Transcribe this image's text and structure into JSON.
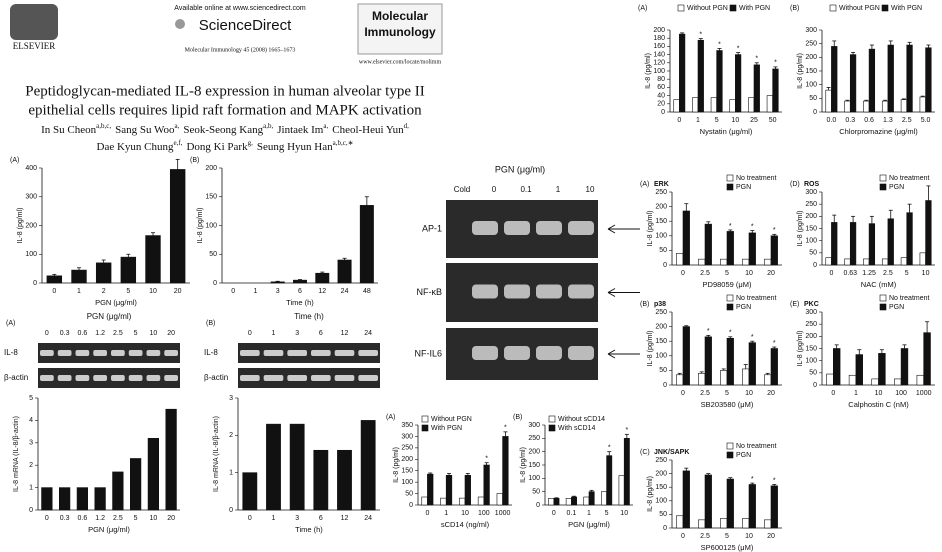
{
  "header": {
    "available": "Available online at www.sciencedirect.com",
    "brand": "ScienceDirect",
    "publisher": "ELSEVIER",
    "citation": "Molecular Immunology 45 (2008) 1665–1673",
    "journal": [
      "Molecular",
      "Immunology"
    ],
    "url": "www.elsevier.com/locate/molimm",
    "title": [
      "Peptidoglycan-mediated IL-8 expression in human alveolar type II",
      "epithelial cells requires lipid raft formation and MAPK activation"
    ],
    "authors": [
      [
        {
          "name": "In Su Cheon",
          "sup": "a,b,c,"
        },
        {
          "name": "Sang Su Woo",
          "sup": "a,"
        },
        {
          "name": "Seok-Seong Kang",
          "sup": "a,b,"
        },
        {
          "name": "Jintaek Im",
          "sup": "a,"
        },
        {
          "name": "Cheol-Heui Yun",
          "sup": "d,"
        }
      ],
      [
        {
          "name": "Dae Kyun Chung",
          "sup": "e,f,"
        },
        {
          "name": "Dong Ki Park",
          "sup": "g,"
        },
        {
          "name": "Seung Hyun Han",
          "sup": "a,b,c,∗"
        }
      ]
    ]
  },
  "emsa": {
    "header": "PGN (μg/ml)",
    "lanes": [
      "Cold",
      "0",
      "0.1",
      "1",
      "10"
    ],
    "rows": [
      "AP-1",
      "NF-κB",
      "NF-IL6"
    ]
  },
  "chart_data": [
    {
      "type": "bar",
      "panel": "(A)",
      "ylabel": "IL-8 (pg/ml)",
      "xlabel": "PGN (μg/ml)",
      "categories": [
        "0",
        "1",
        "2",
        "5",
        "10",
        "20"
      ],
      "values": [
        25,
        45,
        70,
        90,
        165,
        395
      ],
      "errors": [
        5,
        8,
        10,
        10,
        10,
        35
      ],
      "color": "#111111",
      "ylim": [
        0,
        400
      ],
      "yticks": [
        0,
        100,
        200,
        300,
        400
      ]
    },
    {
      "type": "bar",
      "panel": "(B)",
      "ylabel": "IL-8 (pg/ml)",
      "xlabel": "Time (h)",
      "categories": [
        "0",
        "1",
        "3",
        "6",
        "12",
        "24",
        "48"
      ],
      "values": [
        0,
        0,
        2,
        5,
        17,
        40,
        135
      ],
      "errors": [
        0,
        0,
        1,
        1,
        2,
        3,
        15
      ],
      "color": "#111111",
      "ylim": [
        0,
        200
      ],
      "yticks": [
        0,
        50,
        100,
        150,
        200
      ]
    },
    {
      "type": "bar",
      "panel": "(A)",
      "gel": {
        "header": "PGN (μg/ml)",
        "lanes": [
          "0",
          "0.3",
          "0.6",
          "1.2",
          "2.5",
          "5",
          "10",
          "20"
        ],
        "rows": [
          "IL-8",
          "β-actin"
        ]
      },
      "ylabel": "IL-8 mRNA (IL-8/β-actin)",
      "xlabel": "PGN (μg/ml)",
      "categories": [
        "0",
        "0.3",
        "0.6",
        "1.2",
        "2.5",
        "5",
        "10",
        "20"
      ],
      "values": [
        1,
        1,
        1,
        1,
        1.7,
        2.3,
        3.2,
        4.5
      ],
      "color": "#111111",
      "ylim": [
        0,
        5
      ],
      "yticks": [
        0,
        1,
        2,
        3,
        4,
        5
      ]
    },
    {
      "type": "bar",
      "panel": "(B)",
      "gel": {
        "header": "Time (h)",
        "lanes": [
          "0",
          "1",
          "3",
          "6",
          "12",
          "24"
        ],
        "rows": [
          "IL-8",
          "β-actin"
        ]
      },
      "ylabel": "IL-8 mRNA (IL-8/β-actin)",
      "xlabel": "Time (h)",
      "categories": [
        "0",
        "1",
        "3",
        "6",
        "12",
        "24"
      ],
      "values": [
        1,
        2.3,
        2.3,
        1.6,
        1.6,
        2.4
      ],
      "color": "#111111",
      "ylim": [
        0,
        3
      ],
      "yticks": [
        0,
        1,
        2,
        3
      ]
    },
    {
      "type": "bar",
      "panel": "(A)",
      "ylabel": "IL-8 (pg/ml)",
      "xlabel": "sCD14 (ng/ml)",
      "legend": "upper left",
      "categories": [
        "0",
        "1",
        "10",
        "100",
        "1000"
      ],
      "series": [
        {
          "name": "Without PGN",
          "color": "#ffffff",
          "values": [
            35,
            30,
            30,
            35,
            50
          ]
        },
        {
          "name": "With PGN",
          "color": "#111111",
          "values": [
            135,
            130,
            130,
            175,
            300
          ],
          "errors": [
            5,
            8,
            8,
            10,
            20
          ],
          "annotations": [
            null,
            null,
            null,
            "*",
            "*"
          ]
        }
      ],
      "ylim": [
        0,
        350
      ],
      "yticks": [
        0,
        50,
        100,
        150,
        200,
        250,
        300,
        350
      ]
    },
    {
      "type": "bar",
      "panel": "(B)",
      "ylabel": "IL-8 (pg/ml)",
      "xlabel": "PGN (μg/ml)",
      "legend": "upper left",
      "categories": [
        "0",
        "0.1",
        "1",
        "5",
        "10"
      ],
      "series": [
        {
          "name": "Without sCD14",
          "color": "#ffffff",
          "values": [
            25,
            25,
            30,
            50,
            110
          ]
        },
        {
          "name": "With sCD14",
          "color": "#111111",
          "values": [
            25,
            30,
            50,
            185,
            250
          ],
          "errors": [
            2,
            3,
            5,
            15,
            15
          ],
          "annotations": [
            null,
            null,
            null,
            "*",
            "*"
          ]
        }
      ],
      "ylim": [
        0,
        300
      ],
      "yticks": [
        0,
        50,
        100,
        150,
        200,
        250,
        300
      ]
    },
    {
      "type": "bar",
      "panel": "(A)",
      "ylabel": "IL-8 (pg/ml)",
      "xlabel": "Nystatin (μg/ml)",
      "legend": "above",
      "categories": [
        "0",
        "1",
        "5",
        "10",
        "25",
        "50"
      ],
      "series": [
        {
          "name": "Without PGN",
          "color": "#ffffff",
          "values": [
            30,
            35,
            35,
            30,
            35,
            40
          ]
        },
        {
          "name": "With PGN",
          "color": "#111111",
          "values": [
            190,
            175,
            150,
            140,
            115,
            105
          ],
          "errors": [
            3,
            4,
            5,
            5,
            5,
            5
          ],
          "annotations": [
            null,
            "*",
            "*",
            "*",
            "*",
            "*"
          ]
        }
      ],
      "ylim": [
        0,
        200
      ],
      "yticks": [
        0,
        20,
        40,
        60,
        80,
        100,
        120,
        140,
        160,
        180,
        200
      ]
    },
    {
      "type": "bar",
      "panel": "(B)",
      "ylabel": "IL-8 (pg/ml)",
      "xlabel": "Chlorpromazine (μg/ml)",
      "legend": "above",
      "categories": [
        "0.0",
        "0.3",
        "0.6",
        "1.3",
        "2.5",
        "5.0"
      ],
      "series": [
        {
          "name": "Without PGN",
          "color": "#ffffff",
          "values": [
            80,
            40,
            40,
            40,
            45,
            55
          ],
          "errors": [
            10,
            3,
            3,
            3,
            3,
            3
          ]
        },
        {
          "name": "With PGN",
          "color": "#111111",
          "values": [
            240,
            210,
            230,
            245,
            245,
            235
          ],
          "errors": [
            20,
            8,
            15,
            15,
            10,
            10
          ]
        }
      ],
      "ylim": [
        0,
        300
      ],
      "yticks": [
        0,
        50,
        100,
        150,
        200,
        250,
        300
      ]
    },
    {
      "type": "bar",
      "panel": "(A)",
      "title": "ERK",
      "ylabel": "IL-8 (pg/ml)",
      "xlabel": "PD98059 (μM)",
      "legend": "upper right",
      "categories": [
        "0",
        "2.5",
        "5",
        "10",
        "20"
      ],
      "series": [
        {
          "name": "No treatment",
          "color": "#ffffff",
          "values": [
            40,
            20,
            20,
            20,
            20
          ]
        },
        {
          "name": "PGN",
          "color": "#111111",
          "values": [
            185,
            140,
            115,
            110,
            100
          ],
          "errors": [
            25,
            8,
            5,
            8,
            5
          ],
          "annotations": [
            null,
            null,
            "*",
            "*",
            "*"
          ]
        }
      ],
      "ylim": [
        0,
        250
      ],
      "yticks": [
        0,
        50,
        100,
        150,
        200,
        250
      ]
    },
    {
      "type": "bar",
      "panel": "(D)",
      "title": "ROS",
      "ylabel": "IL-8 (pg/ml)",
      "xlabel": "NAC (mM)",
      "legend": "upper right",
      "categories": [
        "0",
        "0.63",
        "1.25",
        "2.5",
        "5",
        "10"
      ],
      "series": [
        {
          "name": "No treatment",
          "color": "#ffffff",
          "values": [
            30,
            25,
            25,
            25,
            30,
            50
          ]
        },
        {
          "name": "PGN",
          "color": "#111111",
          "values": [
            175,
            175,
            170,
            190,
            215,
            265
          ],
          "errors": [
            30,
            25,
            30,
            35,
            35,
            60
          ]
        }
      ],
      "ylim": [
        0,
        300
      ],
      "yticks": [
        0,
        50,
        100,
        150,
        200,
        250,
        300
      ]
    },
    {
      "type": "bar",
      "panel": "(B)",
      "title": "p38",
      "ylabel": "IL-8 (pg/ml)",
      "xlabel": "SB203580 (μM)",
      "legend": "upper right",
      "categories": [
        "0",
        "2.5",
        "5",
        "10",
        "20"
      ],
      "series": [
        {
          "name": "No treatment",
          "color": "#ffffff",
          "values": [
            35,
            40,
            50,
            55,
            35
          ],
          "errors": [
            5,
            5,
            5,
            15,
            5
          ]
        },
        {
          "name": "PGN",
          "color": "#111111",
          "values": [
            200,
            165,
            160,
            145,
            125
          ],
          "errors": [
            3,
            5,
            5,
            5,
            5
          ],
          "annotations": [
            null,
            "*",
            "*",
            "*",
            "*"
          ]
        }
      ],
      "ylim": [
        0,
        250
      ],
      "yticks": [
        0,
        50,
        100,
        150,
        200,
        250
      ]
    },
    {
      "type": "bar",
      "panel": "(E)",
      "title": "PKC",
      "ylabel": "IL-8 (pg/ml)",
      "xlabel": "Calphostin C (nM)",
      "legend": "upper right",
      "categories": [
        "0",
        "1",
        "10",
        "100",
        "1000"
      ],
      "series": [
        {
          "name": "No treatment",
          "color": "#ffffff",
          "values": [
            45,
            40,
            25,
            25,
            40
          ]
        },
        {
          "name": "PGN",
          "color": "#111111",
          "values": [
            150,
            125,
            130,
            150,
            215
          ],
          "errors": [
            15,
            20,
            15,
            15,
            45
          ]
        }
      ],
      "ylim": [
        0,
        300
      ],
      "yticks": [
        0,
        50,
        100,
        150,
        200,
        250,
        300
      ]
    },
    {
      "type": "bar",
      "panel": "(C)",
      "title": "JNK/SAPK",
      "ylabel": "IL-8 (pg/ml)",
      "xlabel": "SP600125 (μM)",
      "legend": "upper right",
      "categories": [
        "0",
        "2.5",
        "5",
        "10",
        "20"
      ],
      "series": [
        {
          "name": "No treatment",
          "color": "#ffffff",
          "values": [
            45,
            30,
            35,
            35,
            30
          ]
        },
        {
          "name": "PGN",
          "color": "#111111",
          "values": [
            210,
            195,
            180,
            160,
            155
          ],
          "errors": [
            10,
            5,
            5,
            5,
            5
          ],
          "annotations": [
            null,
            null,
            null,
            "*",
            "*"
          ]
        }
      ],
      "ylim": [
        0,
        250
      ],
      "yticks": [
        0,
        50,
        100,
        150,
        200,
        250
      ]
    }
  ]
}
